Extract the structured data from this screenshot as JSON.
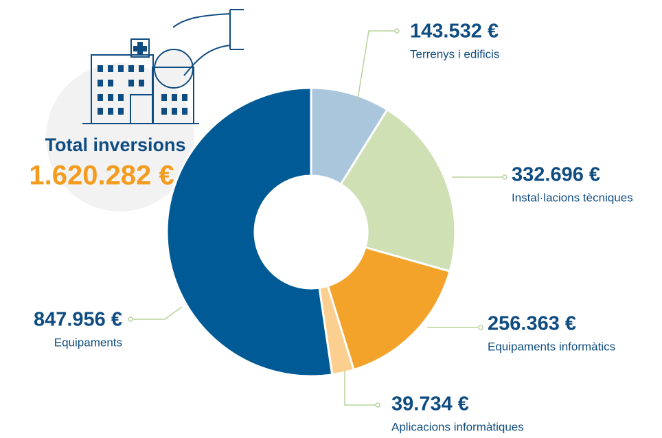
{
  "chart_data": {
    "type": "donut",
    "total_label": "Total inversions",
    "total_value_label": "1.620.282 €",
    "categories": [
      "Terrenys i edificis",
      "Instal·lacions tècniques",
      "Equipaments informàtics",
      "Aplicacions informàtiques",
      "Equipaments"
    ],
    "values": [
      143532,
      332696,
      256363,
      39734,
      847956
    ],
    "value_labels": [
      "143.532 €",
      "332.696 €",
      "256.363 €",
      "39.734 €",
      "847.956 €"
    ],
    "colors": [
      "#a9c6dc",
      "#cfe0b4",
      "#f3a32a",
      "#fbcf8f",
      "#005a95"
    ]
  }
}
